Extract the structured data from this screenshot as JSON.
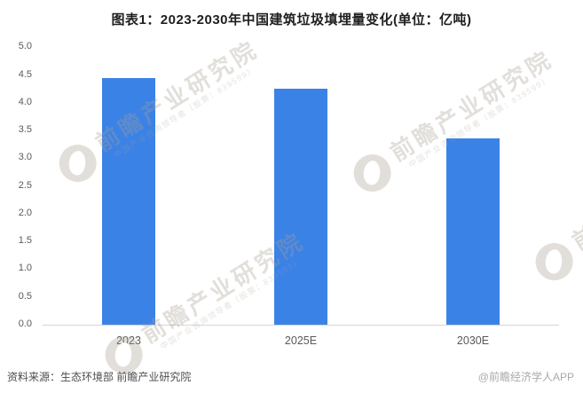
{
  "title": "图表1：2023-2030年中国建筑垃圾填埋量变化(单位：亿吨)",
  "chart_data": {
    "type": "bar",
    "title": "图表1：2023-2030年中国建筑垃圾填埋量变化",
    "unit": "亿吨",
    "categories": [
      "2023",
      "2025E",
      "2030E"
    ],
    "values": [
      4.45,
      4.25,
      3.36
    ],
    "xlabel": "",
    "ylabel": "",
    "ylim": [
      0,
      5
    ],
    "ytick_step": 0.5,
    "ytick_labels": [
      "0.0",
      "0.5",
      "1.0",
      "1.5",
      "2.0",
      "2.5",
      "3.0",
      "3.5",
      "4.0",
      "4.5",
      "5.0"
    ],
    "bar_color": "#3b82e7",
    "grid": "off",
    "legend": "none"
  },
  "footer": {
    "source": "资料来源：生态环境部 前瞻产业研究院",
    "brand": "@前瞻经济学人APP"
  },
  "watermark": {
    "logo": "qianzhan-bird-logo",
    "text": "前瞻产业研究院",
    "subtext": "中国产业咨询领导者（股票：839599）"
  },
  "colors": {
    "bar": "#3b82e7",
    "axis_text": "#595959",
    "axis_line": "#d6d6d6",
    "title_text": "#1f1f1f",
    "source_text": "#4d4d4d",
    "brand_text": "#a9a9a9"
  }
}
